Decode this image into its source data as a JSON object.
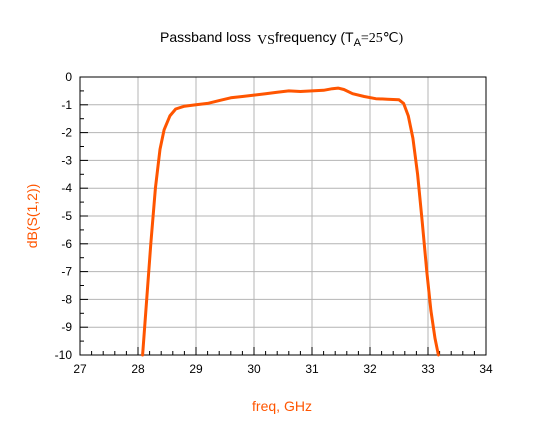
{
  "chart_data": {
    "type": "line",
    "title": {
      "prefix": "Passband loss",
      "vs": "VS",
      "middle": "frequency (T",
      "subscript": "A",
      "suffix": "=25℃)"
    },
    "xlabel": "freq, GHz",
    "ylabel": "dB(S(1,2))",
    "xlim": [
      27,
      34
    ],
    "ylim": [
      -10,
      0
    ],
    "xticks": [
      "27",
      "28",
      "29",
      "30",
      "31",
      "32",
      "33",
      "34"
    ],
    "yticks": [
      "0",
      "-1",
      "-2",
      "-3",
      "-4",
      "-5",
      "-6",
      "-7",
      "-8",
      "-9",
      "-10"
    ],
    "grid": true,
    "series_color": "#ff5500",
    "series": [
      {
        "x": [
          28.08,
          28.15,
          28.22,
          28.3,
          28.38,
          28.45,
          28.55,
          28.65,
          28.8,
          29.0,
          29.2,
          29.4,
          29.6,
          29.8,
          30.0,
          30.2,
          30.4,
          30.6,
          30.8,
          31.0,
          31.2,
          31.35,
          31.45,
          31.55,
          31.7,
          31.9,
          32.1,
          32.3,
          32.5,
          32.58,
          32.66,
          32.74,
          32.82,
          32.9,
          32.98,
          33.05,
          33.12,
          33.18
        ],
        "y": [
          -10.0,
          -8.0,
          -6.0,
          -4.0,
          -2.6,
          -1.9,
          -1.4,
          -1.15,
          -1.05,
          -1.0,
          -0.95,
          -0.85,
          -0.75,
          -0.7,
          -0.65,
          -0.6,
          -0.55,
          -0.5,
          -0.52,
          -0.5,
          -0.48,
          -0.42,
          -0.4,
          -0.45,
          -0.6,
          -0.7,
          -0.78,
          -0.8,
          -0.82,
          -0.95,
          -1.4,
          -2.2,
          -3.5,
          -5.2,
          -7.0,
          -8.4,
          -9.4,
          -10.0
        ]
      }
    ]
  }
}
